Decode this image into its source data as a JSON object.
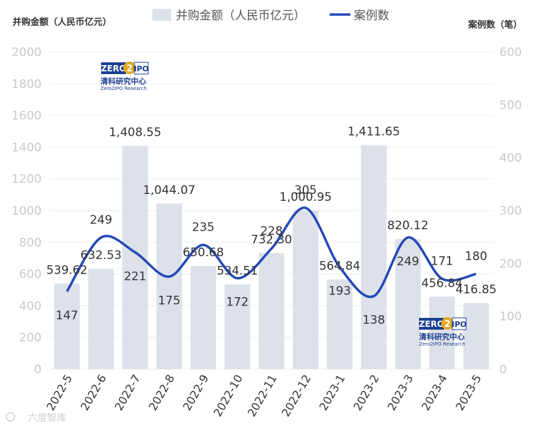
{
  "chart_data": {
    "type": "bar",
    "categories": [
      "2022-5",
      "2022-6",
      "2022-7",
      "2022-8",
      "2022-9",
      "2022-10",
      "2022-11",
      "2022-12",
      "2023-1",
      "2023-2",
      "2023-3",
      "2023-4",
      "2023-5"
    ],
    "series": [
      {
        "name": "并购金额（人民币亿元）",
        "type": "bar",
        "axis": "left",
        "values": [
          539.62,
          632.53,
          1408.55,
          1044.07,
          650.68,
          534.51,
          732.3,
          1000.95,
          564.84,
          1411.65,
          820.12,
          456.84,
          416.85
        ],
        "labels": [
          "539.62",
          "632.53",
          "1,408.55",
          "1,044.07",
          "650.68",
          "534.51",
          "732.30",
          "1,000.95",
          "564.84",
          "1,411.65",
          "820.12",
          "456.84",
          "416.85"
        ]
      },
      {
        "name": "案例数",
        "type": "line",
        "axis": "right",
        "values": [
          147,
          249,
          221,
          175,
          235,
          172,
          228,
          305,
          193,
          138,
          249,
          171,
          180
        ],
        "labels": [
          "147",
          "249",
          "221",
          "175",
          "235",
          "172",
          "228",
          "305",
          "193",
          "138",
          "249",
          "171",
          "180"
        ]
      }
    ],
    "y_left": {
      "label": "并购金额（人民币亿元）",
      "ylim": [
        0,
        2000
      ],
      "ticks": [
        "0",
        "200",
        "400",
        "600",
        "800",
        "1000",
        "1200",
        "1400",
        "1600",
        "1800",
        "2000"
      ]
    },
    "y_right": {
      "label": "案例数（笔）",
      "ylim": [
        0,
        600
      ],
      "ticks": [
        "0",
        "100",
        "200",
        "300",
        "400",
        "500",
        "600"
      ]
    },
    "legend": {
      "position": "top-center",
      "items": [
        "并购金额（人民币亿元）",
        "案例数"
      ]
    },
    "colors": {
      "bar": "#dde1e9",
      "line": "#2448b8",
      "tick": "#c6c9ce",
      "grid": "#eeeeee"
    },
    "grid": true,
    "logos": [
      {
        "brand": "ZERO",
        "num": "2",
        "suffix": "IPO",
        "name_cn": "清科研究中心",
        "name_en": "Zero2IPO Research"
      },
      {
        "brand": "ZERO",
        "num": "2",
        "suffix": "IPO",
        "name_cn": "清科研究中心",
        "name_en": "Zero2IPO Research"
      }
    ],
    "watermark": "六度智库"
  }
}
